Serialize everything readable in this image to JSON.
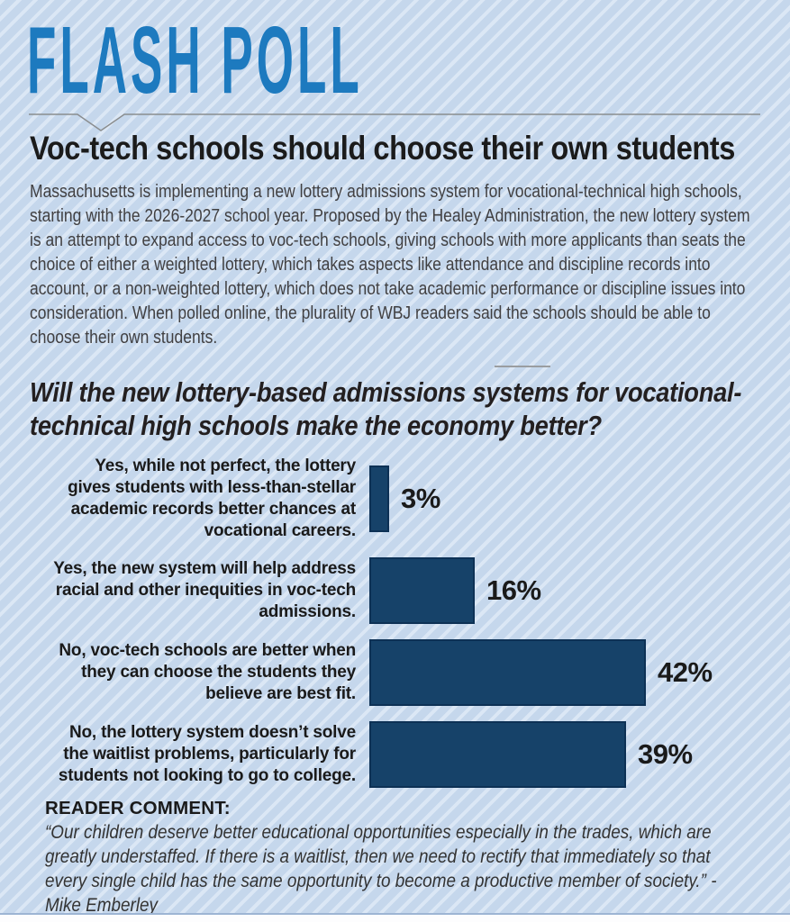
{
  "masthead": {
    "title": "FLASH POLL"
  },
  "headline": "Voc-tech schools should choose their own students",
  "intro": "Massachusetts is implementing a new lottery admissions system for vocational-technical high schools, starting with the 2026-2027 school year. Proposed by the Healey Administration, the new lottery system is an attempt to expand access to voc-tech schools, giving schools with more applicants than seats the choice of either a weighted lottery, which takes aspects like attendance and discipline records into account, or a non-weighted lottery, which does not take academic performance or discipline issues into consideration. When polled online, the plurality of WBJ readers said the schools should be able to choose their own students.",
  "question": "Will the new lottery-based admissions systems for vocational-technical high schools make the economy better?",
  "chart_data": {
    "type": "bar",
    "orientation": "horizontal",
    "title": "Will the new lottery-based admissions systems for vocational-technical high schools make the economy better?",
    "categories": [
      "Yes, while not perfect, the lottery gives students with less-than-stellar academic records better chances at vocational careers.",
      "Yes, the new system will help address racial and other inequities in voc-tech admissions.",
      "No, voc-tech schools are better when they can choose the students they believe are best fit.",
      "No, the lottery system doesn’t solve the waitlist problems, particularly for students not looking to go to college."
    ],
    "category_lines": [
      [
        "Yes, while not perfect, the lottery",
        "gives students with less-than-stellar",
        "academic records better chances at",
        "vocational careers."
      ],
      [
        "Yes, the new system will help address",
        "racial and other inequities in voc-tech",
        "admissions."
      ],
      [
        "No, voc-tech schools are better when",
        "they can choose the students they",
        "believe are best fit."
      ],
      [
        "No, the lottery system doesn’t solve",
        "the waitlist problems, particularly for",
        "students not looking to go to college."
      ]
    ],
    "values": [
      3,
      16,
      42,
      39
    ],
    "value_labels": [
      "3%",
      "16%",
      "42%",
      "39%"
    ],
    "xlim": [
      0,
      45
    ],
    "grid": false,
    "legend_position": "none",
    "bar_color": "#164269",
    "bar_border_color": "#0d3155"
  },
  "reader_comment": {
    "heading": "READER COMMENT:",
    "quote": "“Our children deserve better educational opportunities especially in the trades, which are greatly understaffed. If there is a waitlist, then we need to rectify that immediately so that every single child has the same opportunity to become a productive member of society.” - Mike Emberley"
  },
  "colors": {
    "accent_blue": "#1d7abf",
    "bar_navy": "#164269",
    "background_blue": "#c5d7ec",
    "stripe_blue": "#dbe7f5",
    "rule_gray": "#8a8d8f"
  }
}
